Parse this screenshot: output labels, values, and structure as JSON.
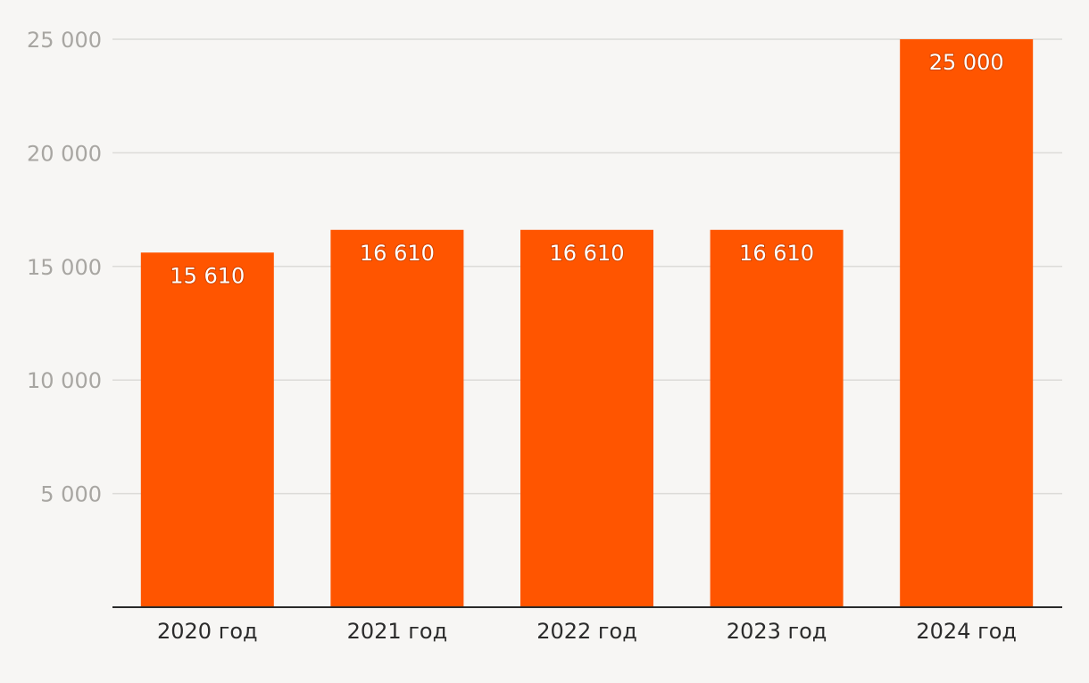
{
  "chart_data": {
    "type": "bar",
    "categories": [
      "2020 год",
      "2021 год",
      "2022 год",
      "2023 год",
      "2024 год"
    ],
    "values": [
      15610,
      16610,
      16610,
      16610,
      25000
    ],
    "data_labels": [
      "15 610",
      "16 610",
      "16 610",
      "16 610",
      "25 000"
    ],
    "y_ticks": [
      5000,
      10000,
      15000,
      20000,
      25000
    ],
    "y_tick_labels": [
      "5 000",
      "10 000",
      "15 000",
      "20 000",
      "25 000"
    ],
    "ylim": [
      0,
      25000
    ],
    "grid": true,
    "bar_color": "#ff5500",
    "background_color": "#f7f6f4"
  }
}
